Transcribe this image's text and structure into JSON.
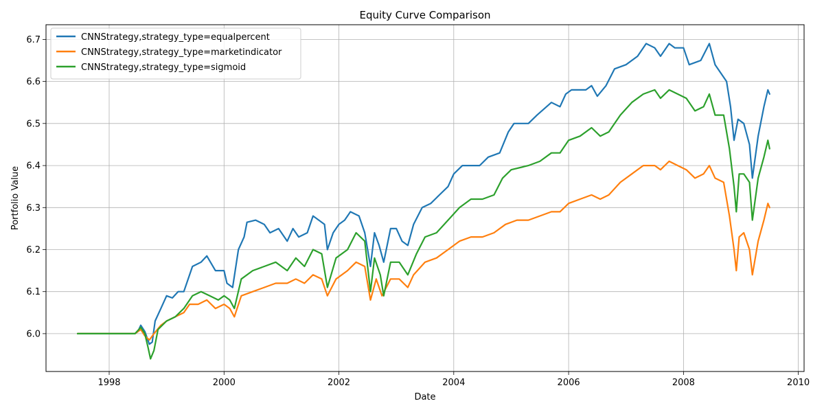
{
  "chart_data": {
    "type": "line",
    "title": "Equity Curve Comparison",
    "xlabel": "Date",
    "ylabel": "Portfolio Value",
    "xlim": [
      1996.9,
      2010.1
    ],
    "ylim": [
      5.91,
      6.735
    ],
    "x_ticks": [
      1998,
      2000,
      2002,
      2004,
      2006,
      2008,
      2010
    ],
    "x_tick_labels": [
      "1998",
      "2000",
      "2002",
      "2004",
      "2006",
      "2008",
      "2010"
    ],
    "y_ticks": [
      6.0,
      6.1,
      6.2,
      6.3,
      6.4,
      6.5,
      6.6,
      6.7
    ],
    "y_tick_labels": [
      "6.0",
      "6.1",
      "6.2",
      "6.3",
      "6.4",
      "6.5",
      "6.6",
      "6.7"
    ],
    "grid": true,
    "legend_position": "top-left",
    "series": [
      {
        "name": "CNNStrategy,strategy_type=equalpercent",
        "color": "#1f77b4",
        "points": [
          [
            1997.45,
            6.0
          ],
          [
            1998.45,
            6.0
          ],
          [
            1998.5,
            6.005
          ],
          [
            1998.55,
            6.02
          ],
          [
            1998.62,
            6.005
          ],
          [
            1998.7,
            5.975
          ],
          [
            1998.75,
            5.98
          ],
          [
            1998.8,
            6.03
          ],
          [
            1998.9,
            6.06
          ],
          [
            1999.0,
            6.09
          ],
          [
            1999.1,
            6.085
          ],
          [
            1999.2,
            6.1
          ],
          [
            1999.3,
            6.1
          ],
          [
            1999.45,
            6.16
          ],
          [
            1999.6,
            6.17
          ],
          [
            1999.7,
            6.185
          ],
          [
            1999.85,
            6.15
          ],
          [
            2000.0,
            6.15
          ],
          [
            2000.05,
            6.12
          ],
          [
            2000.15,
            6.11
          ],
          [
            2000.25,
            6.2
          ],
          [
            2000.35,
            6.23
          ],
          [
            2000.4,
            6.265
          ],
          [
            2000.55,
            6.27
          ],
          [
            2000.7,
            6.26
          ],
          [
            2000.8,
            6.24
          ],
          [
            2000.95,
            6.25
          ],
          [
            2001.1,
            6.22
          ],
          [
            2001.2,
            6.25
          ],
          [
            2001.3,
            6.23
          ],
          [
            2001.45,
            6.24
          ],
          [
            2001.55,
            6.28
          ],
          [
            2001.65,
            6.27
          ],
          [
            2001.75,
            6.26
          ],
          [
            2001.8,
            6.2
          ],
          [
            2001.9,
            6.24
          ],
          [
            2002.0,
            6.26
          ],
          [
            2002.1,
            6.27
          ],
          [
            2002.2,
            6.29
          ],
          [
            2002.35,
            6.28
          ],
          [
            2002.45,
            6.24
          ],
          [
            2002.55,
            6.16
          ],
          [
            2002.62,
            6.24
          ],
          [
            2002.7,
            6.21
          ],
          [
            2002.78,
            6.17
          ],
          [
            2002.9,
            6.25
          ],
          [
            2003.0,
            6.25
          ],
          [
            2003.1,
            6.22
          ],
          [
            2003.2,
            6.21
          ],
          [
            2003.3,
            6.26
          ],
          [
            2003.45,
            6.3
          ],
          [
            2003.6,
            6.31
          ],
          [
            2003.75,
            6.33
          ],
          [
            2003.9,
            6.35
          ],
          [
            2004.0,
            6.38
          ],
          [
            2004.15,
            6.4
          ],
          [
            2004.3,
            6.4
          ],
          [
            2004.45,
            6.4
          ],
          [
            2004.6,
            6.42
          ],
          [
            2004.8,
            6.43
          ],
          [
            2004.95,
            6.48
          ],
          [
            2005.05,
            6.5
          ],
          [
            2005.3,
            6.5
          ],
          [
            2005.45,
            6.52
          ],
          [
            2005.7,
            6.55
          ],
          [
            2005.85,
            6.54
          ],
          [
            2005.95,
            6.57
          ],
          [
            2006.05,
            6.58
          ],
          [
            2006.3,
            6.58
          ],
          [
            2006.4,
            6.59
          ],
          [
            2006.5,
            6.565
          ],
          [
            2006.65,
            6.59
          ],
          [
            2006.8,
            6.63
          ],
          [
            2007.0,
            6.64
          ],
          [
            2007.2,
            6.66
          ],
          [
            2007.35,
            6.69
          ],
          [
            2007.5,
            6.68
          ],
          [
            2007.6,
            6.66
          ],
          [
            2007.75,
            6.69
          ],
          [
            2007.85,
            6.68
          ],
          [
            2008.0,
            6.68
          ],
          [
            2008.1,
            6.64
          ],
          [
            2008.3,
            6.65
          ],
          [
            2008.45,
            6.69
          ],
          [
            2008.55,
            6.64
          ],
          [
            2008.65,
            6.62
          ],
          [
            2008.75,
            6.6
          ],
          [
            2008.82,
            6.54
          ],
          [
            2008.88,
            6.46
          ],
          [
            2008.95,
            6.51
          ],
          [
            2009.05,
            6.5
          ],
          [
            2009.15,
            6.45
          ],
          [
            2009.2,
            6.37
          ],
          [
            2009.3,
            6.47
          ],
          [
            2009.4,
            6.54
          ],
          [
            2009.47,
            6.58
          ],
          [
            2009.5,
            6.57
          ]
        ]
      },
      {
        "name": "CNNStrategy,strategy_type=marketindicator",
        "color": "#ff7f0e",
        "points": [
          [
            1997.45,
            6.0
          ],
          [
            1998.45,
            6.0
          ],
          [
            1998.55,
            6.01
          ],
          [
            1998.62,
            5.995
          ],
          [
            1998.7,
            5.985
          ],
          [
            1998.78,
            6.0
          ],
          [
            1998.9,
            6.02
          ],
          [
            1999.0,
            6.03
          ],
          [
            1999.15,
            6.04
          ],
          [
            1999.3,
            6.05
          ],
          [
            1999.4,
            6.07
          ],
          [
            1999.55,
            6.07
          ],
          [
            1999.7,
            6.08
          ],
          [
            1999.85,
            6.06
          ],
          [
            2000.0,
            6.07
          ],
          [
            2000.1,
            6.06
          ],
          [
            2000.18,
            6.04
          ],
          [
            2000.3,
            6.09
          ],
          [
            2000.5,
            6.1
          ],
          [
            2000.7,
            6.11
          ],
          [
            2000.9,
            6.12
          ],
          [
            2001.1,
            6.12
          ],
          [
            2001.25,
            6.13
          ],
          [
            2001.4,
            6.12
          ],
          [
            2001.55,
            6.14
          ],
          [
            2001.7,
            6.13
          ],
          [
            2001.8,
            6.09
          ],
          [
            2001.95,
            6.13
          ],
          [
            2002.15,
            6.15
          ],
          [
            2002.3,
            6.17
          ],
          [
            2002.45,
            6.16
          ],
          [
            2002.55,
            6.08
          ],
          [
            2002.65,
            6.13
          ],
          [
            2002.75,
            6.09
          ],
          [
            2002.9,
            6.13
          ],
          [
            2003.05,
            6.13
          ],
          [
            2003.2,
            6.11
          ],
          [
            2003.3,
            6.14
          ],
          [
            2003.5,
            6.17
          ],
          [
            2003.7,
            6.18
          ],
          [
            2003.9,
            6.2
          ],
          [
            2004.1,
            6.22
          ],
          [
            2004.3,
            6.23
          ],
          [
            2004.5,
            6.23
          ],
          [
            2004.7,
            6.24
          ],
          [
            2004.9,
            6.26
          ],
          [
            2005.1,
            6.27
          ],
          [
            2005.3,
            6.27
          ],
          [
            2005.5,
            6.28
          ],
          [
            2005.7,
            6.29
          ],
          [
            2005.85,
            6.29
          ],
          [
            2006.0,
            6.31
          ],
          [
            2006.2,
            6.32
          ],
          [
            2006.4,
            6.33
          ],
          [
            2006.55,
            6.32
          ],
          [
            2006.7,
            6.33
          ],
          [
            2006.9,
            6.36
          ],
          [
            2007.1,
            6.38
          ],
          [
            2007.3,
            6.4
          ],
          [
            2007.5,
            6.4
          ],
          [
            2007.6,
            6.39
          ],
          [
            2007.75,
            6.41
          ],
          [
            2007.9,
            6.4
          ],
          [
            2008.05,
            6.39
          ],
          [
            2008.2,
            6.37
          ],
          [
            2008.35,
            6.38
          ],
          [
            2008.45,
            6.4
          ],
          [
            2008.55,
            6.37
          ],
          [
            2008.7,
            6.36
          ],
          [
            2008.8,
            6.28
          ],
          [
            2008.88,
            6.2
          ],
          [
            2008.92,
            6.15
          ],
          [
            2008.97,
            6.23
          ],
          [
            2009.05,
            6.24
          ],
          [
            2009.15,
            6.2
          ],
          [
            2009.2,
            6.14
          ],
          [
            2009.3,
            6.22
          ],
          [
            2009.4,
            6.27
          ],
          [
            2009.47,
            6.31
          ],
          [
            2009.5,
            6.3
          ]
        ]
      },
      {
        "name": "CNNStrategy,strategy_type=sigmoid",
        "color": "#2ca02c",
        "points": [
          [
            1997.45,
            6.0
          ],
          [
            1998.45,
            6.0
          ],
          [
            1998.55,
            6.015
          ],
          [
            1998.62,
            6.0
          ],
          [
            1998.68,
            5.965
          ],
          [
            1998.72,
            5.94
          ],
          [
            1998.78,
            5.96
          ],
          [
            1998.85,
            6.01
          ],
          [
            1999.0,
            6.03
          ],
          [
            1999.15,
            6.04
          ],
          [
            1999.3,
            6.06
          ],
          [
            1999.45,
            6.09
          ],
          [
            1999.6,
            6.1
          ],
          [
            1999.75,
            6.09
          ],
          [
            1999.9,
            6.08
          ],
          [
            2000.0,
            6.09
          ],
          [
            2000.1,
            6.08
          ],
          [
            2000.18,
            6.06
          ],
          [
            2000.3,
            6.13
          ],
          [
            2000.5,
            6.15
          ],
          [
            2000.7,
            6.16
          ],
          [
            2000.9,
            6.17
          ],
          [
            2001.1,
            6.15
          ],
          [
            2001.25,
            6.18
          ],
          [
            2001.4,
            6.16
          ],
          [
            2001.55,
            6.2
          ],
          [
            2001.7,
            6.19
          ],
          [
            2001.8,
            6.11
          ],
          [
            2001.95,
            6.18
          ],
          [
            2002.15,
            6.2
          ],
          [
            2002.3,
            6.24
          ],
          [
            2002.45,
            6.22
          ],
          [
            2002.55,
            6.1
          ],
          [
            2002.62,
            6.18
          ],
          [
            2002.72,
            6.14
          ],
          [
            2002.78,
            6.09
          ],
          [
            2002.9,
            6.17
          ],
          [
            2003.05,
            6.17
          ],
          [
            2003.2,
            6.14
          ],
          [
            2003.35,
            6.19
          ],
          [
            2003.5,
            6.23
          ],
          [
            2003.7,
            6.24
          ],
          [
            2003.9,
            6.27
          ],
          [
            2004.1,
            6.3
          ],
          [
            2004.3,
            6.32
          ],
          [
            2004.5,
            6.32
          ],
          [
            2004.7,
            6.33
          ],
          [
            2004.85,
            6.37
          ],
          [
            2005.0,
            6.39
          ],
          [
            2005.3,
            6.4
          ],
          [
            2005.5,
            6.41
          ],
          [
            2005.7,
            6.43
          ],
          [
            2005.85,
            6.43
          ],
          [
            2006.0,
            6.46
          ],
          [
            2006.2,
            6.47
          ],
          [
            2006.4,
            6.49
          ],
          [
            2006.55,
            6.47
          ],
          [
            2006.7,
            6.48
          ],
          [
            2006.9,
            6.52
          ],
          [
            2007.1,
            6.55
          ],
          [
            2007.3,
            6.57
          ],
          [
            2007.5,
            6.58
          ],
          [
            2007.6,
            6.56
          ],
          [
            2007.75,
            6.58
          ],
          [
            2007.9,
            6.57
          ],
          [
            2008.05,
            6.56
          ],
          [
            2008.2,
            6.53
          ],
          [
            2008.35,
            6.54
          ],
          [
            2008.45,
            6.57
          ],
          [
            2008.55,
            6.52
          ],
          [
            2008.7,
            6.52
          ],
          [
            2008.8,
            6.44
          ],
          [
            2008.88,
            6.35
          ],
          [
            2008.92,
            6.29
          ],
          [
            2008.97,
            6.38
          ],
          [
            2009.05,
            6.38
          ],
          [
            2009.15,
            6.36
          ],
          [
            2009.2,
            6.27
          ],
          [
            2009.3,
            6.37
          ],
          [
            2009.4,
            6.42
          ],
          [
            2009.47,
            6.46
          ],
          [
            2009.5,
            6.44
          ]
        ]
      }
    ]
  }
}
